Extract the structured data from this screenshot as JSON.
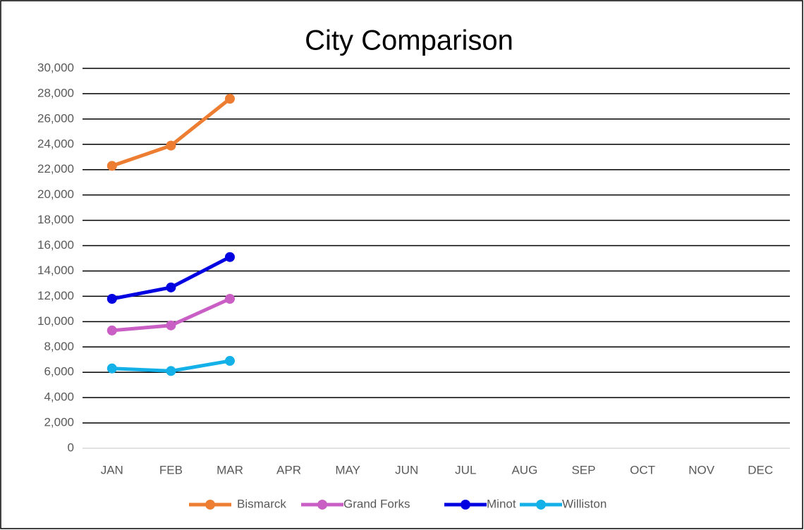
{
  "chart_data": {
    "type": "line",
    "title": "City Comparison",
    "categories": [
      "JAN",
      "FEB",
      "MAR",
      "APR",
      "MAY",
      "JUN",
      "JUL",
      "AUG",
      "SEP",
      "OCT",
      "NOV",
      "DEC"
    ],
    "series": [
      {
        "name": "Bismarck",
        "color": "#ed7d31",
        "values": [
          22300,
          23900,
          27600,
          null,
          null,
          null,
          null,
          null,
          null,
          null,
          null,
          null
        ]
      },
      {
        "name": "Grand Forks",
        "color": "#c95fc4",
        "values": [
          9300,
          9700,
          11800,
          null,
          null,
          null,
          null,
          null,
          null,
          null,
          null,
          null
        ]
      },
      {
        "name": "Minot",
        "color": "#0000e0",
        "values": [
          11800,
          12700,
          15100,
          null,
          null,
          null,
          null,
          null,
          null,
          null,
          null,
          null
        ]
      },
      {
        "name": "Williston",
        "color": "#13b1e8",
        "values": [
          6300,
          6100,
          6900,
          null,
          null,
          null,
          null,
          null,
          null,
          null,
          null,
          null
        ]
      }
    ],
    "ylim": [
      0,
      30000
    ],
    "yticks": [
      0,
      {
        "value": 2000,
        "label": "2,000"
      },
      {
        "value": 4000,
        "label": "4,000"
      },
      {
        "value": 6000,
        "label": "6,000"
      },
      {
        "value": 8000,
        "label": "8,000"
      },
      {
        "value": 10000,
        "label": "10,000"
      },
      {
        "value": 12000,
        "label": "12,000"
      },
      {
        "value": 14000,
        "label": "14,000"
      },
      {
        "value": 16000,
        "label": "16,000"
      },
      {
        "value": 18000,
        "label": "18,000"
      },
      {
        "value": 20000,
        "label": "20,000"
      },
      {
        "value": 22000,
        "label": "22,000"
      },
      {
        "value": 24000,
        "label": "24,000"
      },
      {
        "value": 26000,
        "label": "26,000"
      },
      {
        "value": 28000,
        "label": "28,000"
      },
      {
        "value": 30000,
        "label": "30,000"
      }
    ],
    "grid": true,
    "legend": "bottom"
  }
}
